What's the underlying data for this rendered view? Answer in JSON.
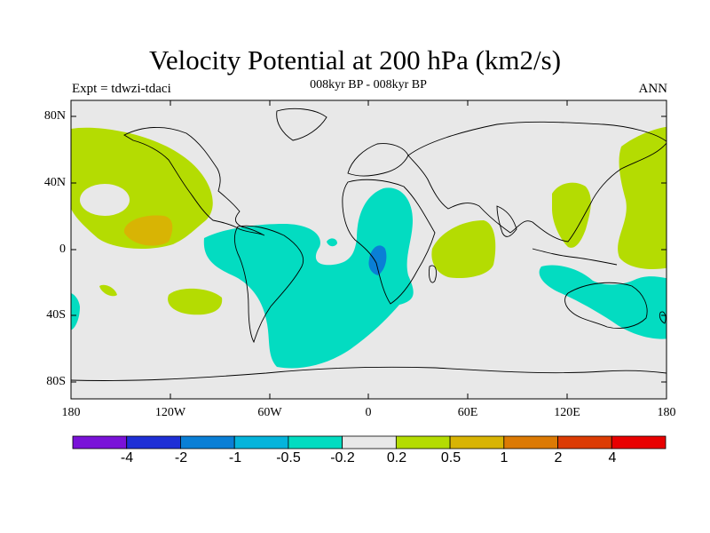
{
  "title": "Velocity Potential at 200 hPa (km2/s)",
  "subtitle": "008kyr BP - 008kyr BP",
  "left_label": "Expt = tdwzi-tdaci",
  "right_label": "ANN",
  "lat_ticks": [
    "80N",
    "40N",
    "0",
    "40S",
    "80S"
  ],
  "lon_ticks": [
    "180",
    "120W",
    "60W",
    "0",
    "60E",
    "120E",
    "180"
  ],
  "colorbar": {
    "colors": [
      "#7a12d8",
      "#1e2fd6",
      "#0a7fd6",
      "#05b4db",
      "#03dcc1",
      "#e8e8e8",
      "#b4dc02",
      "#d8b404",
      "#dc7a04",
      "#dc3c04",
      "#e80000"
    ],
    "labels": [
      "-4",
      "-2",
      "-1",
      "-0.5",
      "-0.2",
      "0.2",
      "0.5",
      "1",
      "2",
      "4"
    ]
  },
  "map": {
    "land_color": "#e8e8e8",
    "coast_color": "#000000"
  }
}
